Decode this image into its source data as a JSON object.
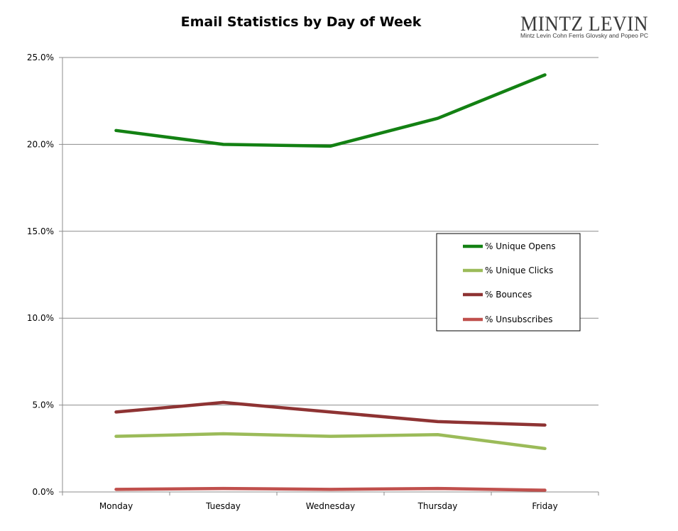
{
  "brand": {
    "name": "MINTZ LEVIN",
    "subtitle": "Mintz Levin Cohn Ferris Glovsky and Popeo PC"
  },
  "chart_data": {
    "type": "line",
    "title": "Email Statistics by Day of Week",
    "xlabel": "",
    "ylabel": "",
    "categories": [
      "Monday",
      "Tuesday",
      "Wednesday",
      "Thursday",
      "Friday"
    ],
    "y_ticks": [
      "0.0%",
      "5.0%",
      "10.0%",
      "15.0%",
      "20.0%",
      "25.0%"
    ],
    "ylim": [
      0,
      25
    ],
    "grid": true,
    "legend_position": "right",
    "series": [
      {
        "name": "% Unique Opens",
        "values": [
          20.8,
          20.0,
          19.9,
          21.5,
          24.0
        ],
        "color": "#138113"
      },
      {
        "name": "% Unique Clicks",
        "values": [
          3.2,
          3.35,
          3.2,
          3.3,
          2.5
        ],
        "color": "#9bbb59"
      },
      {
        "name": "% Bounces",
        "values": [
          4.6,
          5.15,
          4.6,
          4.05,
          3.85
        ],
        "color": "#8e3333"
      },
      {
        "name": "% Unsubscribes",
        "values": [
          0.15,
          0.2,
          0.15,
          0.2,
          0.1
        ],
        "color": "#c0504d"
      }
    ]
  }
}
